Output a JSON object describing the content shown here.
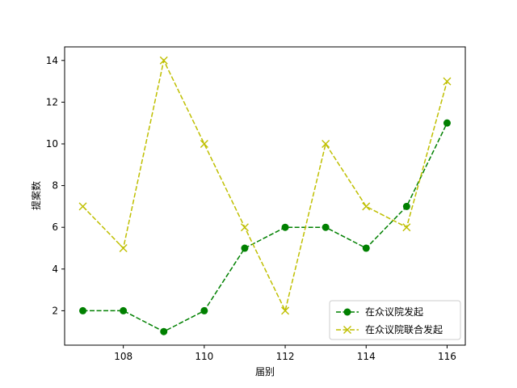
{
  "chart_data": {
    "type": "line",
    "title": "",
    "xlabel": "届别",
    "ylabel": "提案数",
    "x": [
      107,
      108,
      109,
      110,
      111,
      112,
      113,
      114,
      115,
      116
    ],
    "xlim": [
      106.55,
      116.45
    ],
    "ylim": [
      0.35,
      14.65
    ],
    "xticks": [
      108,
      110,
      112,
      114,
      116
    ],
    "yticks": [
      2,
      4,
      6,
      8,
      10,
      12,
      14
    ],
    "grid": false,
    "legend_position": "bottom-right",
    "series": [
      {
        "name": "在众议院发起",
        "values": [
          2,
          2,
          1,
          2,
          5,
          6,
          6,
          5,
          7,
          11
        ],
        "color": "#008000",
        "line_style": "dashed",
        "marker": "circle"
      },
      {
        "name": "在众议院联合发起",
        "values": [
          7,
          5,
          14,
          10,
          6,
          2,
          10,
          7,
          6,
          13
        ],
        "color": "#bfbf00",
        "line_style": "dashed",
        "marker": "x"
      }
    ]
  }
}
